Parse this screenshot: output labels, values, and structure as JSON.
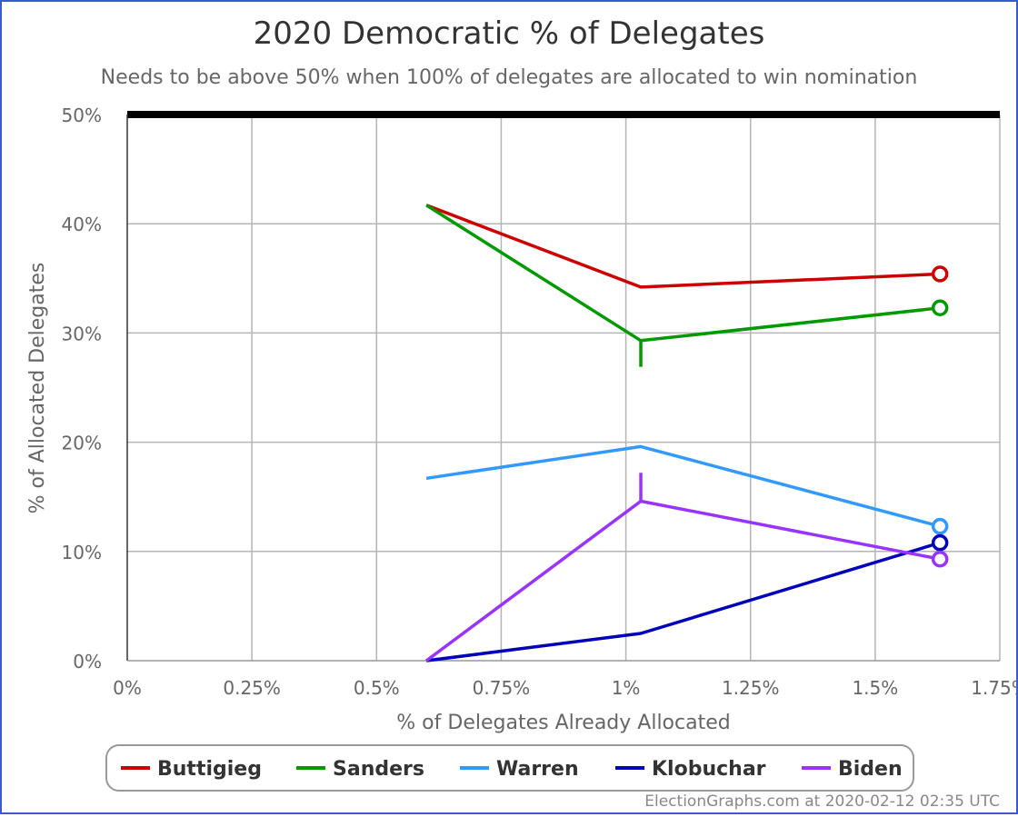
{
  "chart_data": {
    "type": "line",
    "title": "2020 Democratic % of Delegates",
    "subtitle": "Needs to be above 50% when 100% of delegates are allocated to win nomination",
    "xlabel": "% of Delegates Already Allocated",
    "ylabel": "% of Allocated Delegates",
    "xlim": [
      0,
      1.75
    ],
    "ylim": [
      0,
      50
    ],
    "x_ticks": [
      0,
      0.25,
      0.5,
      0.75,
      1,
      1.25,
      1.5,
      1.75
    ],
    "x_tick_labels": [
      "0%",
      "0.25%",
      "0.5%",
      "0.75%",
      "1%",
      "1.25%",
      "1.5%",
      "1.75%"
    ],
    "y_ticks": [
      0,
      10,
      20,
      30,
      40,
      50
    ],
    "y_tick_labels": [
      "0%",
      "10%",
      "20%",
      "30%",
      "40%",
      "50%"
    ],
    "grid": true,
    "legend_position": "bottom",
    "threshold_line": {
      "y": 50,
      "color": "#000000"
    },
    "series": [
      {
        "name": "Buttigieg",
        "color": "#cc0000",
        "points": [
          [
            0.6,
            41.7
          ],
          [
            1.03,
            34.2
          ],
          [
            1.63,
            35.4
          ]
        ],
        "spikes": []
      },
      {
        "name": "Sanders",
        "color": "#009900",
        "points": [
          [
            0.6,
            41.7
          ],
          [
            1.03,
            29.3
          ],
          [
            1.63,
            32.3
          ]
        ],
        "spikes": [
          {
            "x": 1.03,
            "from": 29.3,
            "to": 26.9
          }
        ]
      },
      {
        "name": "Warren",
        "color": "#3399ff",
        "points": [
          [
            0.6,
            16.7
          ],
          [
            1.03,
            19.6
          ],
          [
            1.63,
            12.3
          ]
        ],
        "spikes": []
      },
      {
        "name": "Klobuchar",
        "color": "#0000bb",
        "points": [
          [
            0.6,
            0
          ],
          [
            1.03,
            2.5
          ],
          [
            1.63,
            10.8
          ]
        ],
        "spikes": []
      },
      {
        "name": "Biden",
        "color": "#9933ff",
        "points": [
          [
            0.6,
            0
          ],
          [
            1.03,
            14.6
          ],
          [
            1.63,
            9.3
          ]
        ],
        "spikes": [
          {
            "x": 1.03,
            "from": 14.6,
            "to": 17.2
          }
        ]
      }
    ]
  },
  "credit": "ElectionGraphs.com at 2020-02-12 02:35 UTC"
}
